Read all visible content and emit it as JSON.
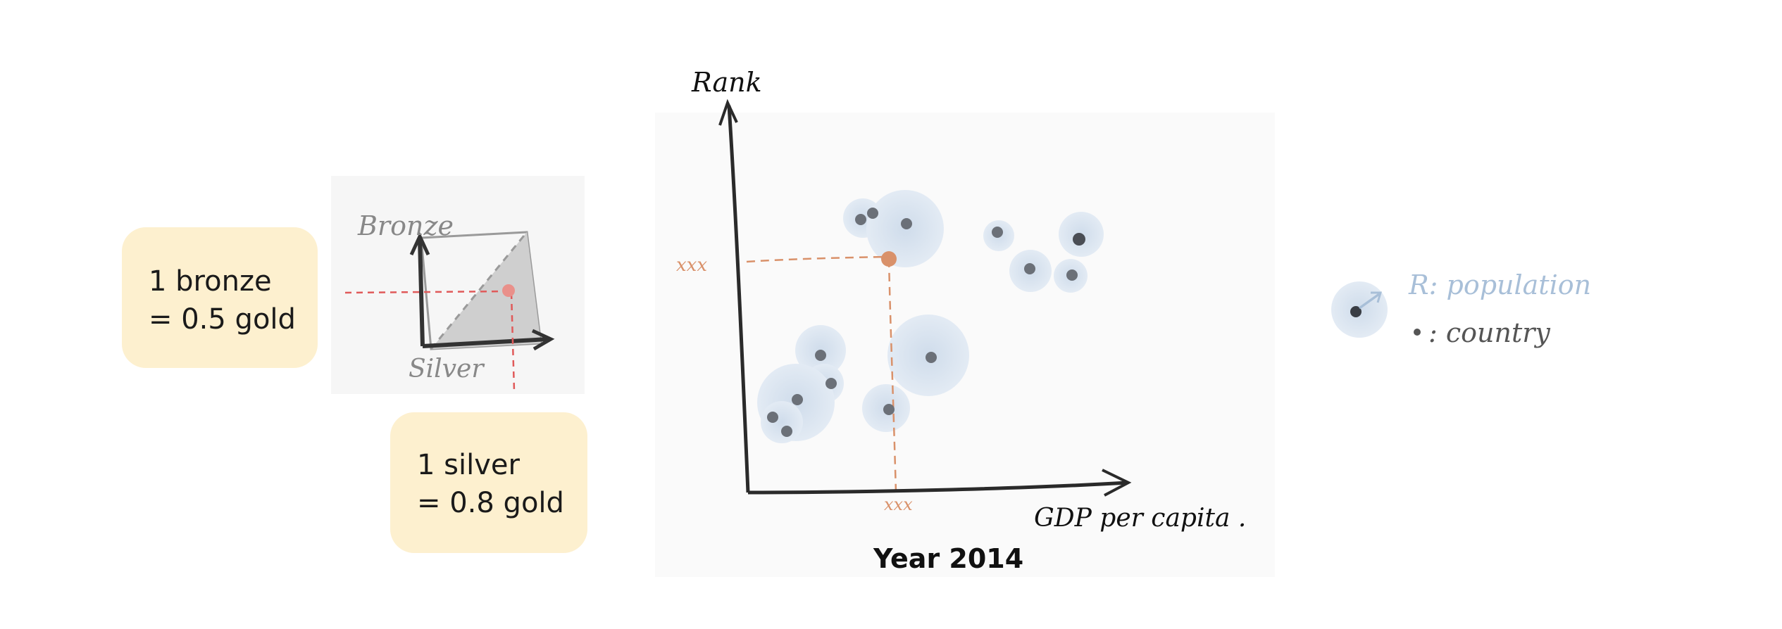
{
  "conversion_boxes": {
    "bronze": {
      "line1": "1 bronze",
      "line2": "= 0.5 gold"
    },
    "silver": {
      "line1": "1 silver",
      "line2": "= 0.8 gold"
    }
  },
  "medal_sketch": {
    "y_axis_label": "Bronze",
    "x_axis_label": "Silver"
  },
  "scatter_sketch": {
    "y_axis_label": "Rank",
    "x_axis_label": "GDP per capita .",
    "y_marker": "xxx",
    "x_marker": "xxx",
    "caption": "Year 2014"
  },
  "legend": {
    "size_label": "R: population",
    "dot_label": ": country"
  },
  "colors": {
    "box_fill": "#fdf0cf",
    "bubble_fill": "#dbe6f1",
    "point": "#6b7078",
    "highlight": "#d9916a",
    "guide_red": "#e05a5a",
    "legend_blue": "#a8bfd8"
  }
}
